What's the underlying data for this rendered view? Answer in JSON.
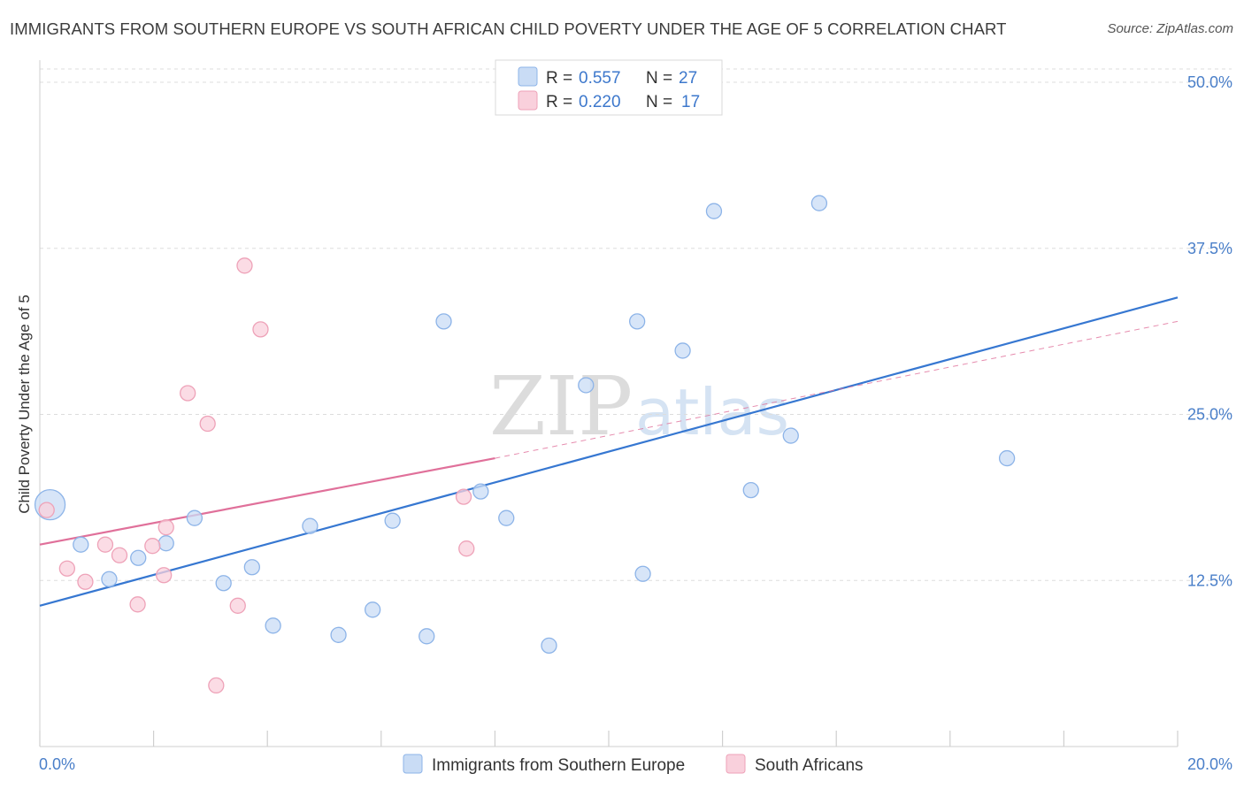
{
  "header": {
    "title": "IMMIGRANTS FROM SOUTHERN EUROPE VS SOUTH AFRICAN CHILD POVERTY UNDER THE AGE OF 5 CORRELATION CHART",
    "source": "Source: ZipAtlas.com"
  },
  "watermark": {
    "zip": "ZIP",
    "atlas": "atlas"
  },
  "colors": {
    "blue_fill": "#c9dcf5",
    "blue_stroke": "#8db4e8",
    "blue_line": "#3677d1",
    "pink_fill": "#f9d0dc",
    "pink_stroke": "#eea2b8",
    "pink_line": "#e0709a",
    "grid": "#dddddd",
    "tick_text": "#4a7fc9"
  },
  "legend": {
    "r_label": "R =",
    "n_label": "N =",
    "entries": [
      {
        "r": "0.557",
        "n": "27"
      },
      {
        "r": "0.220",
        "n": "17"
      }
    ]
  },
  "chart_data": {
    "type": "scatter",
    "title": "IMMIGRANTS FROM SOUTHERN EUROPE VS SOUTH AFRICAN CHILD POVERTY UNDER THE AGE OF 5 CORRELATION CHART",
    "xlabel": "",
    "ylabel": "Child Poverty Under the Age of 5",
    "xlim": [
      0,
      20
    ],
    "ylim": [
      0,
      51
    ],
    "x_tick_labels": [
      "0.0%",
      "20.0%"
    ],
    "y_ticks": [
      12.5,
      25.0,
      37.5,
      50.0
    ],
    "y_tick_labels": [
      "12.5%",
      "25.0%",
      "37.5%",
      "50.0%"
    ],
    "grid": true,
    "legend_position": "top-center",
    "series": [
      {
        "name": "Immigrants from Southern Europe",
        "color": "#8db4e8",
        "points": [
          {
            "x": 0.18,
            "y": 18.2,
            "big": true
          },
          {
            "x": 0.72,
            "y": 15.2
          },
          {
            "x": 1.22,
            "y": 12.6
          },
          {
            "x": 1.73,
            "y": 14.2
          },
          {
            "x": 2.22,
            "y": 15.3
          },
          {
            "x": 2.72,
            "y": 17.2
          },
          {
            "x": 3.23,
            "y": 12.3
          },
          {
            "x": 3.73,
            "y": 13.5
          },
          {
            "x": 4.1,
            "y": 9.1
          },
          {
            "x": 4.75,
            "y": 16.6
          },
          {
            "x": 5.25,
            "y": 8.4
          },
          {
            "x": 5.85,
            "y": 10.3
          },
          {
            "x": 6.2,
            "y": 17.0
          },
          {
            "x": 6.8,
            "y": 8.3
          },
          {
            "x": 7.1,
            "y": 32.0
          },
          {
            "x": 7.75,
            "y": 19.2
          },
          {
            "x": 8.2,
            "y": 17.2
          },
          {
            "x": 8.95,
            "y": 7.6
          },
          {
            "x": 9.6,
            "y": 27.2
          },
          {
            "x": 10.5,
            "y": 32.0
          },
          {
            "x": 10.6,
            "y": 13.0
          },
          {
            "x": 11.3,
            "y": 29.8
          },
          {
            "x": 11.85,
            "y": 40.3
          },
          {
            "x": 12.5,
            "y": 19.3
          },
          {
            "x": 13.2,
            "y": 23.4
          },
          {
            "x": 13.7,
            "y": 40.9
          },
          {
            "x": 17.0,
            "y": 21.7
          }
        ],
        "trend": {
          "x0": 0.0,
          "y0": 10.6,
          "x1": 20.0,
          "y1": 33.8
        }
      },
      {
        "name": "South Africans",
        "color": "#eea2b8",
        "points": [
          {
            "x": 0.12,
            "y": 17.8
          },
          {
            "x": 0.48,
            "y": 13.4
          },
          {
            "x": 0.8,
            "y": 12.4
          },
          {
            "x": 1.15,
            "y": 15.2
          },
          {
            "x": 1.4,
            "y": 14.4
          },
          {
            "x": 1.72,
            "y": 10.7
          },
          {
            "x": 1.98,
            "y": 15.1
          },
          {
            "x": 2.18,
            "y": 12.9
          },
          {
            "x": 2.22,
            "y": 16.5
          },
          {
            "x": 2.6,
            "y": 26.6
          },
          {
            "x": 2.95,
            "y": 24.3
          },
          {
            "x": 3.1,
            "y": 4.6
          },
          {
            "x": 3.48,
            "y": 10.6
          },
          {
            "x": 3.6,
            "y": 36.2
          },
          {
            "x": 3.88,
            "y": 31.4
          },
          {
            "x": 7.45,
            "y": 18.8
          },
          {
            "x": 7.5,
            "y": 14.9
          }
        ],
        "trend": {
          "x0": 0.0,
          "y0": 15.2,
          "x1": 8.0,
          "y1": 21.7
        },
        "trend_extension": {
          "x0": 8.0,
          "y0": 21.7,
          "x1": 20.0,
          "y1": 32.0
        }
      }
    ]
  }
}
